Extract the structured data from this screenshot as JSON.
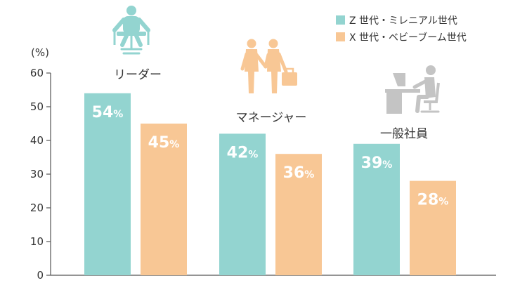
{
  "chart_data": {
    "type": "bar",
    "unit_label": "(%)",
    "categories": [
      "リーダー",
      "マネージャー",
      "一般社員"
    ],
    "category_icons": [
      "seated-person-icon",
      "handshake-icon",
      "person-at-desk-icon"
    ],
    "series": [
      {
        "name": "Z 世代・ミレニアル世代",
        "values": [
          54,
          42,
          39
        ],
        "color": "#93d4d0"
      },
      {
        "name": "X 世代・ベビーブーム世代",
        "values": [
          45,
          36,
          28
        ],
        "color": "#f8c795"
      }
    ],
    "data_labels": [
      [
        "54",
        "42",
        "39"
      ],
      [
        "45",
        "36",
        "28"
      ]
    ],
    "label_suffix": "%",
    "yticks": [
      "0",
      "10",
      "20",
      "30",
      "40",
      "50",
      "60"
    ],
    "ylim": [
      0,
      60
    ],
    "grid": false,
    "legend_position": "top-right",
    "icon_colors": [
      "#93d4d0",
      "#f8c795",
      "#c4c4c4"
    ]
  }
}
